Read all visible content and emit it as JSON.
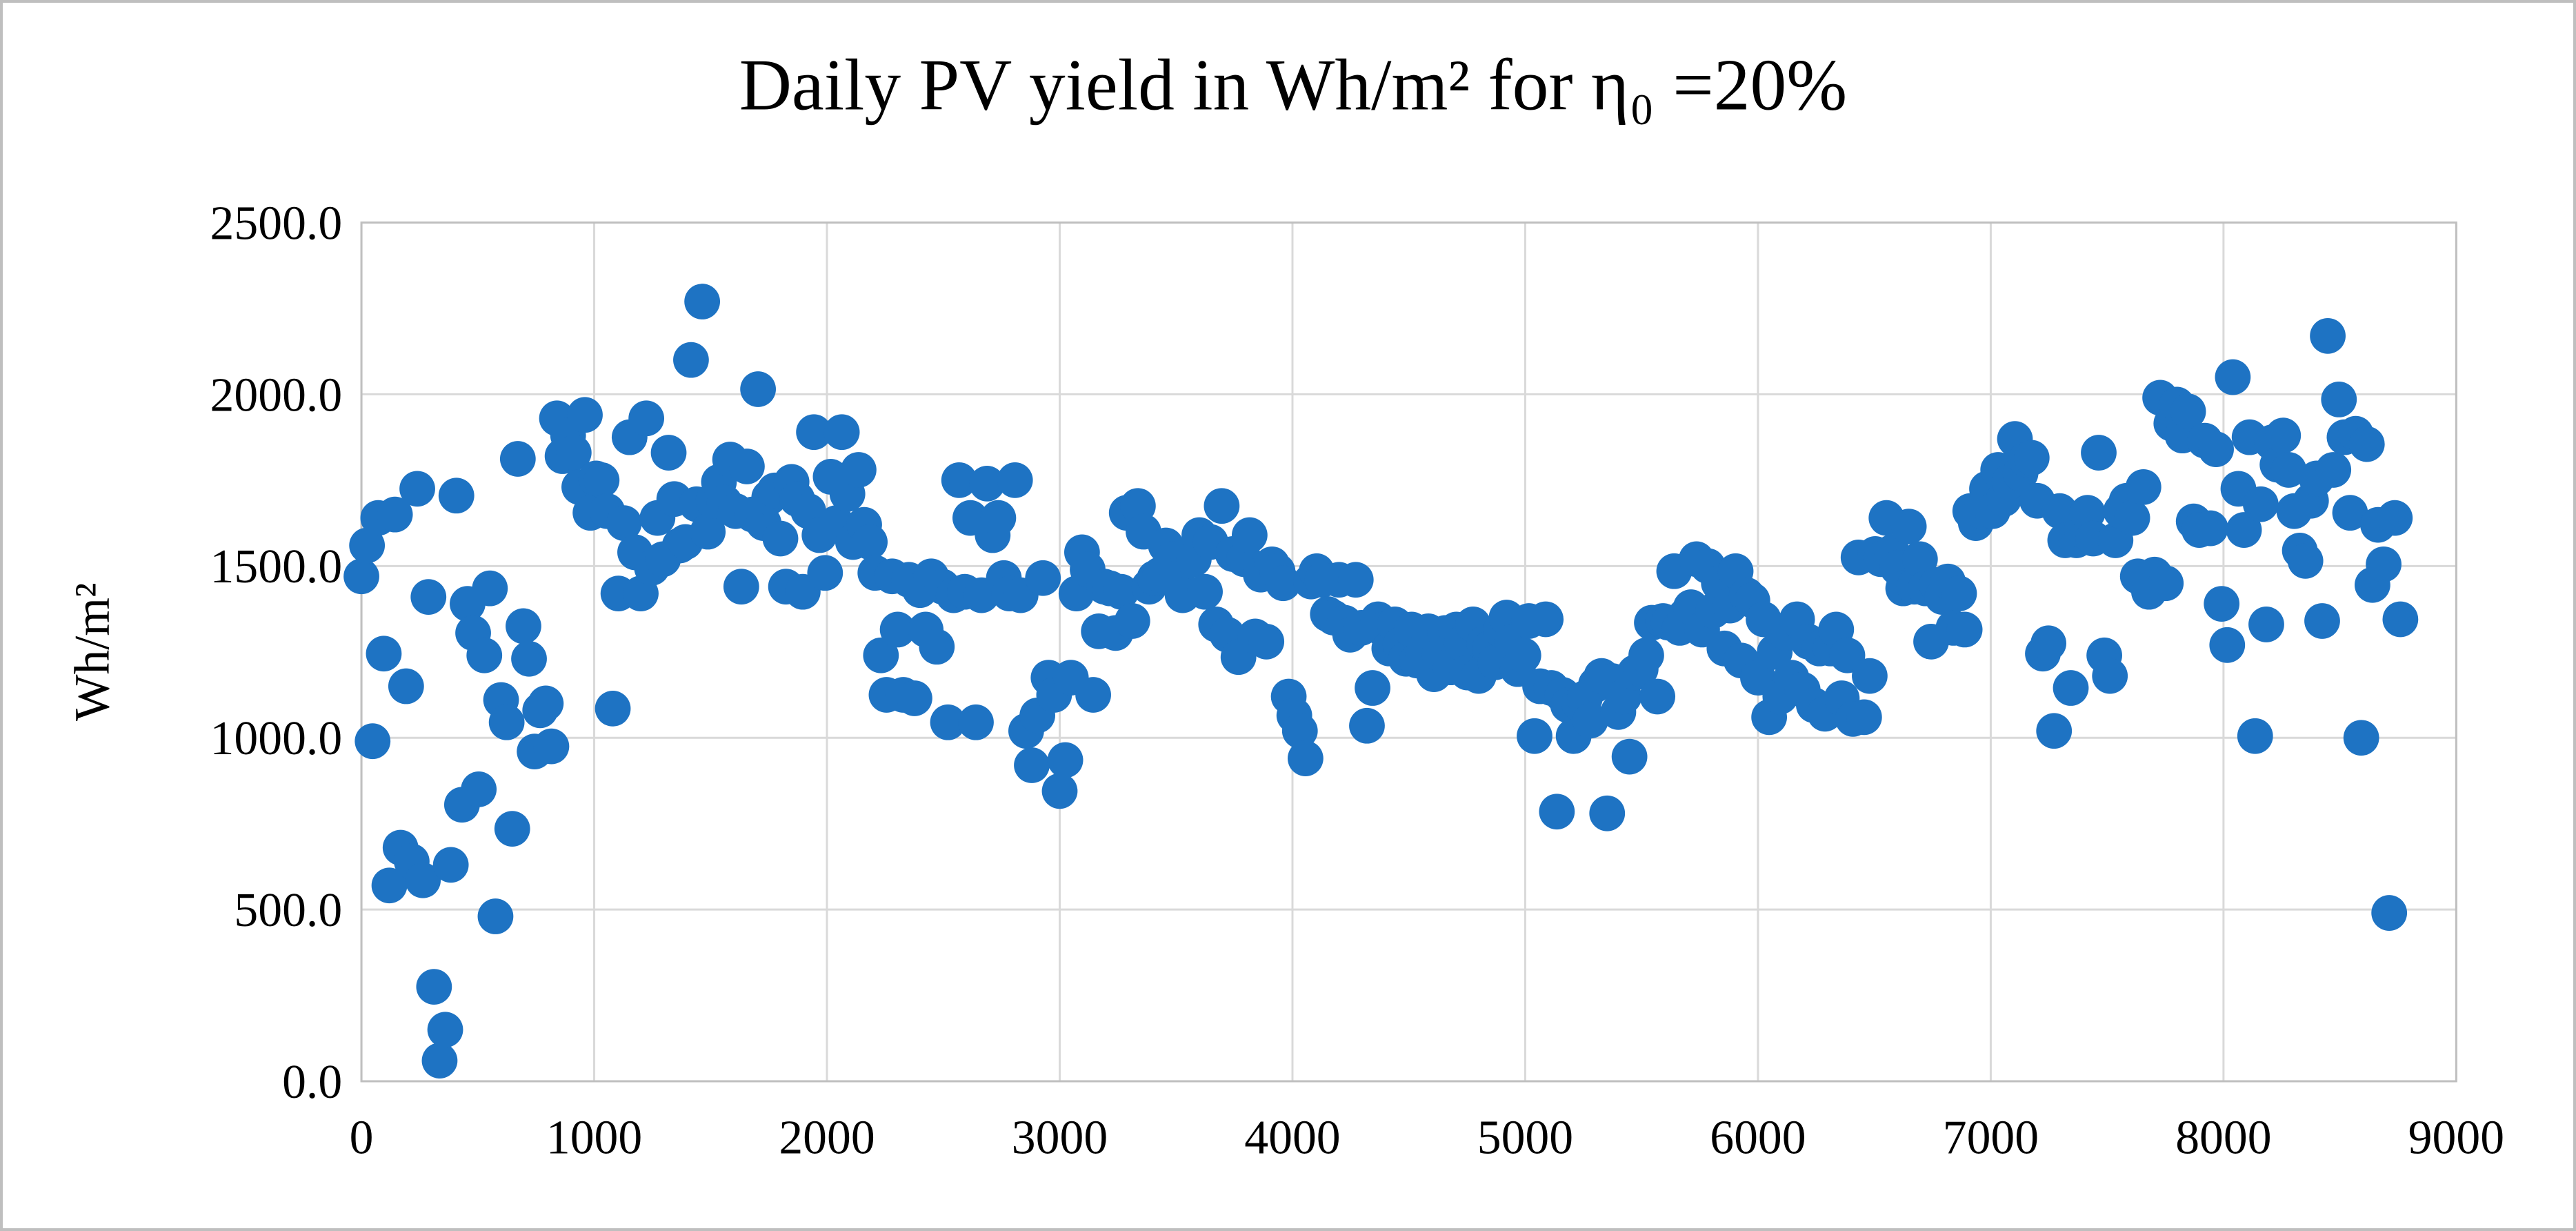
{
  "chart_data": {
    "type": "scatter",
    "title": "Daily PV yield in Wh/m² for η₀ =20%",
    "ylabel": "Wh/m²",
    "xlabel": "",
    "xlim": [
      0,
      9000
    ],
    "ylim": [
      0,
      2500
    ],
    "x_ticks": [
      "0",
      "1000",
      "2000",
      "3000",
      "4000",
      "5000",
      "6000",
      "7000",
      "8000",
      "9000"
    ],
    "y_ticks": [
      "0.0",
      "500.0",
      "1000.0",
      "1500.0",
      "2000.0",
      "2500.0"
    ],
    "grid": true,
    "legend_position": "none",
    "marker_color": "#1E73C3",
    "marker_radius": 26,
    "grid_color": "#D9D9D9",
    "plot_border_color": "#BFBFBF",
    "points": [
      [
        0,
        1470
      ],
      [
        24,
        1560
      ],
      [
        48,
        990
      ],
      [
        72,
        1640
      ],
      [
        96,
        1245
      ],
      [
        120,
        570
      ],
      [
        144,
        1650
      ],
      [
        168,
        680
      ],
      [
        192,
        1150
      ],
      [
        216,
        640
      ],
      [
        240,
        1725
      ],
      [
        264,
        585
      ],
      [
        288,
        1410
      ],
      [
        312,
        275
      ],
      [
        336,
        60
      ],
      [
        360,
        150
      ],
      [
        384,
        630
      ],
      [
        408,
        1705
      ],
      [
        432,
        805
      ],
      [
        456,
        1390
      ],
      [
        480,
        1305
      ],
      [
        504,
        850
      ],
      [
        528,
        1240
      ],
      [
        552,
        1435
      ],
      [
        576,
        480
      ],
      [
        600,
        1110
      ],
      [
        624,
        1045
      ],
      [
        648,
        735
      ],
      [
        672,
        1812
      ],
      [
        696,
        1325
      ],
      [
        720,
        1230
      ],
      [
        744,
        960
      ],
      [
        768,
        1080
      ],
      [
        792,
        1100
      ],
      [
        816,
        975
      ],
      [
        840,
        1930
      ],
      [
        864,
        1820
      ],
      [
        888,
        1880
      ],
      [
        912,
        1830
      ],
      [
        936,
        1730
      ],
      [
        960,
        1940
      ],
      [
        984,
        1655
      ],
      [
        1008,
        1755
      ],
      [
        1032,
        1750
      ],
      [
        1056,
        1660
      ],
      [
        1080,
        1085
      ],
      [
        1104,
        1420
      ],
      [
        1128,
        1625
      ],
      [
        1152,
        1875
      ],
      [
        1176,
        1540
      ],
      [
        1200,
        1420
      ],
      [
        1224,
        1930
      ],
      [
        1248,
        1495
      ],
      [
        1272,
        1640
      ],
      [
        1296,
        1520
      ],
      [
        1320,
        1830
      ],
      [
        1344,
        1695
      ],
      [
        1368,
        1560
      ],
      [
        1392,
        1570
      ],
      [
        1416,
        2100
      ],
      [
        1440,
        1680
      ],
      [
        1464,
        2270
      ],
      [
        1488,
        1600
      ],
      [
        1512,
        1690
      ],
      [
        1536,
        1745
      ],
      [
        1560,
        1685
      ],
      [
        1584,
        1810
      ],
      [
        1608,
        1660
      ],
      [
        1632,
        1440
      ],
      [
        1656,
        1790
      ],
      [
        1680,
        1650
      ],
      [
        1704,
        2015
      ],
      [
        1728,
        1625
      ],
      [
        1752,
        1700
      ],
      [
        1776,
        1720
      ],
      [
        1800,
        1580
      ],
      [
        1824,
        1440
      ],
      [
        1848,
        1745
      ],
      [
        1872,
        1695
      ],
      [
        1896,
        1425
      ],
      [
        1920,
        1660
      ],
      [
        1944,
        1890
      ],
      [
        1968,
        1590
      ],
      [
        1992,
        1480
      ],
      [
        2016,
        1760
      ],
      [
        2040,
        1625
      ],
      [
        2064,
        1890
      ],
      [
        2088,
        1710
      ],
      [
        2112,
        1570
      ],
      [
        2136,
        1780
      ],
      [
        2160,
        1620
      ],
      [
        2184,
        1570
      ],
      [
        2208,
        1480
      ],
      [
        2232,
        1240
      ],
      [
        2256,
        1125
      ],
      [
        2280,
        1470
      ],
      [
        2304,
        1315
      ],
      [
        2328,
        1125
      ],
      [
        2352,
        1460
      ],
      [
        2376,
        1115
      ],
      [
        2400,
        1430
      ],
      [
        2424,
        1315
      ],
      [
        2448,
        1470
      ],
      [
        2472,
        1265
      ],
      [
        2496,
        1440
      ],
      [
        2520,
        1045
      ],
      [
        2544,
        1415
      ],
      [
        2568,
        1750
      ],
      [
        2592,
        1425
      ],
      [
        2616,
        1640
      ],
      [
        2640,
        1045
      ],
      [
        2664,
        1415
      ],
      [
        2688,
        1740
      ],
      [
        2712,
        1590
      ],
      [
        2736,
        1640
      ],
      [
        2760,
        1465
      ],
      [
        2784,
        1420
      ],
      [
        2808,
        1750
      ],
      [
        2832,
        1415
      ],
      [
        2856,
        1020
      ],
      [
        2880,
        920
      ],
      [
        2904,
        1065
      ],
      [
        2928,
        1465
      ],
      [
        2952,
        1175
      ],
      [
        2976,
        1125
      ],
      [
        3000,
        845
      ],
      [
        3024,
        935
      ],
      [
        3048,
        1175
      ],
      [
        3072,
        1420
      ],
      [
        3096,
        1540
      ],
      [
        3120,
        1490
      ],
      [
        3144,
        1125
      ],
      [
        3168,
        1310
      ],
      [
        3192,
        1440
      ],
      [
        3216,
        1435
      ],
      [
        3240,
        1305
      ],
      [
        3264,
        1425
      ],
      [
        3288,
        1655
      ],
      [
        3312,
        1340
      ],
      [
        3336,
        1675
      ],
      [
        3360,
        1600
      ],
      [
        3384,
        1440
      ],
      [
        3408,
        1465
      ],
      [
        3432,
        1475
      ],
      [
        3456,
        1560
      ],
      [
        3480,
        1520
      ],
      [
        3504,
        1465
      ],
      [
        3528,
        1415
      ],
      [
        3552,
        1530
      ],
      [
        3576,
        1520
      ],
      [
        3600,
        1590
      ],
      [
        3624,
        1425
      ],
      [
        3648,
        1570
      ],
      [
        3672,
        1330
      ],
      [
        3696,
        1675
      ],
      [
        3720,
        1300
      ],
      [
        3744,
        1535
      ],
      [
        3768,
        1235
      ],
      [
        3792,
        1520
      ],
      [
        3816,
        1590
      ],
      [
        3840,
        1295
      ],
      [
        3864,
        1475
      ],
      [
        3888,
        1280
      ],
      [
        3912,
        1505
      ],
      [
        3936,
        1485
      ],
      [
        3960,
        1450
      ],
      [
        3984,
        1120
      ],
      [
        4008,
        1065
      ],
      [
        4032,
        1020
      ],
      [
        4056,
        940
      ],
      [
        4080,
        1455
      ],
      [
        4104,
        1485
      ],
      [
        4128,
        1460
      ],
      [
        4152,
        1360
      ],
      [
        4176,
        1350
      ],
      [
        4200,
        1460
      ],
      [
        4224,
        1335
      ],
      [
        4248,
        1300
      ],
      [
        4272,
        1460
      ],
      [
        4296,
        1320
      ],
      [
        4320,
        1035
      ],
      [
        4344,
        1145
      ],
      [
        4368,
        1345
      ],
      [
        4392,
        1315
      ],
      [
        4416,
        1260
      ],
      [
        4440,
        1330
      ],
      [
        4464,
        1270
      ],
      [
        4488,
        1230
      ],
      [
        4512,
        1315
      ],
      [
        4536,
        1225
      ],
      [
        4560,
        1245
      ],
      [
        4584,
        1310
      ],
      [
        4608,
        1185
      ],
      [
        4632,
        1245
      ],
      [
        4656,
        1305
      ],
      [
        4680,
        1205
      ],
      [
        4704,
        1315
      ],
      [
        4728,
        1275
      ],
      [
        4752,
        1190
      ],
      [
        4776,
        1330
      ],
      [
        4800,
        1180
      ],
      [
        4824,
        1275
      ],
      [
        4848,
        1260
      ],
      [
        4872,
        1220
      ],
      [
        4896,
        1315
      ],
      [
        4920,
        1350
      ],
      [
        4944,
        1280
      ],
      [
        4968,
        1200
      ],
      [
        4992,
        1240
      ],
      [
        5016,
        1340
      ],
      [
        5040,
        1005
      ],
      [
        5064,
        1150
      ],
      [
        5088,
        1345
      ],
      [
        5112,
        1145
      ],
      [
        5136,
        785
      ],
      [
        5160,
        1125
      ],
      [
        5184,
        1095
      ],
      [
        5208,
        1005
      ],
      [
        5232,
        1100
      ],
      [
        5256,
        1115
      ],
      [
        5280,
        1050
      ],
      [
        5304,
        1155
      ],
      [
        5328,
        1180
      ],
      [
        5352,
        780
      ],
      [
        5376,
        1165
      ],
      [
        5400,
        1075
      ],
      [
        5424,
        1120
      ],
      [
        5448,
        945
      ],
      [
        5472,
        1190
      ],
      [
        5496,
        1200
      ],
      [
        5520,
        1240
      ],
      [
        5544,
        1335
      ],
      [
        5568,
        1120
      ],
      [
        5592,
        1340
      ],
      [
        5616,
        1335
      ],
      [
        5640,
        1485
      ],
      [
        5664,
        1320
      ],
      [
        5688,
        1355
      ],
      [
        5712,
        1380
      ],
      [
        5736,
        1520
      ],
      [
        5760,
        1315
      ],
      [
        5784,
        1500
      ],
      [
        5808,
        1370
      ],
      [
        5832,
        1450
      ],
      [
        5856,
        1260
      ],
      [
        5880,
        1385
      ],
      [
        5904,
        1485
      ],
      [
        5928,
        1225
      ],
      [
        5952,
        1415
      ],
      [
        5976,
        1400
      ],
      [
        6000,
        1175
      ],
      [
        6024,
        1345
      ],
      [
        6048,
        1060
      ],
      [
        6072,
        1250
      ],
      [
        6096,
        1120
      ],
      [
        6120,
        1305
      ],
      [
        6144,
        1175
      ],
      [
        6168,
        1345
      ],
      [
        6192,
        1140
      ],
      [
        6216,
        1280
      ],
      [
        6240,
        1095
      ],
      [
        6264,
        1260
      ],
      [
        6288,
        1070
      ],
      [
        6312,
        1260
      ],
      [
        6336,
        1315
      ],
      [
        6360,
        1115
      ],
      [
        6384,
        1240
      ],
      [
        6408,
        1055
      ],
      [
        6432,
        1525
      ],
      [
        6456,
        1060
      ],
      [
        6480,
        1180
      ],
      [
        6504,
        1535
      ],
      [
        6528,
        1520
      ],
      [
        6552,
        1640
      ],
      [
        6576,
        1540
      ],
      [
        6600,
        1495
      ],
      [
        6624,
        1435
      ],
      [
        6648,
        1615
      ],
      [
        6672,
        1440
      ],
      [
        6696,
        1520
      ],
      [
        6720,
        1435
      ],
      [
        6744,
        1280
      ],
      [
        6768,
        1445
      ],
      [
        6792,
        1410
      ],
      [
        6816,
        1455
      ],
      [
        6840,
        1320
      ],
      [
        6864,
        1420
      ],
      [
        6888,
        1315
      ],
      [
        6912,
        1660
      ],
      [
        6936,
        1625
      ],
      [
        6960,
        1660
      ],
      [
        6984,
        1725
      ],
      [
        7008,
        1660
      ],
      [
        7032,
        1780
      ],
      [
        7056,
        1695
      ],
      [
        7080,
        1745
      ],
      [
        7104,
        1870
      ],
      [
        7128,
        1770
      ],
      [
        7152,
        1810
      ],
      [
        7176,
        1815
      ],
      [
        7200,
        1690
      ],
      [
        7224,
        1245
      ],
      [
        7248,
        1275
      ],
      [
        7272,
        1020
      ],
      [
        7296,
        1660
      ],
      [
        7320,
        1575
      ],
      [
        7344,
        1145
      ],
      [
        7368,
        1575
      ],
      [
        7392,
        1605
      ],
      [
        7416,
        1655
      ],
      [
        7440,
        1580
      ],
      [
        7464,
        1830
      ],
      [
        7488,
        1240
      ],
      [
        7512,
        1180
      ],
      [
        7536,
        1575
      ],
      [
        7560,
        1660
      ],
      [
        7584,
        1690
      ],
      [
        7608,
        1640
      ],
      [
        7632,
        1470
      ],
      [
        7656,
        1730
      ],
      [
        7680,
        1425
      ],
      [
        7704,
        1475
      ],
      [
        7728,
        1990
      ],
      [
        7752,
        1450
      ],
      [
        7776,
        1915
      ],
      [
        7800,
        1970
      ],
      [
        7824,
        1880
      ],
      [
        7848,
        1950
      ],
      [
        7872,
        1630
      ],
      [
        7896,
        1605
      ],
      [
        7920,
        1865
      ],
      [
        7944,
        1610
      ],
      [
        7968,
        1840
      ],
      [
        7992,
        1390
      ],
      [
        8016,
        1270
      ],
      [
        8040,
        2050
      ],
      [
        8064,
        1725
      ],
      [
        8088,
        1605
      ],
      [
        8112,
        1875
      ],
      [
        8136,
        1005
      ],
      [
        8160,
        1680
      ],
      [
        8184,
        1330
      ],
      [
        8208,
        1860
      ],
      [
        8232,
        1795
      ],
      [
        8256,
        1880
      ],
      [
        8280,
        1780
      ],
      [
        8304,
        1660
      ],
      [
        8328,
        1545
      ],
      [
        8352,
        1515
      ],
      [
        8376,
        1690
      ],
      [
        8400,
        1755
      ],
      [
        8424,
        1340
      ],
      [
        8448,
        2170
      ],
      [
        8472,
        1780
      ],
      [
        8496,
        1985
      ],
      [
        8520,
        1875
      ],
      [
        8544,
        1655
      ],
      [
        8568,
        1885
      ],
      [
        8592,
        1000
      ],
      [
        8616,
        1855
      ],
      [
        8640,
        1445
      ],
      [
        8664,
        1620
      ],
      [
        8688,
        1505
      ],
      [
        8712,
        490
      ],
      [
        8736,
        1640
      ],
      [
        8760,
        1345
      ]
    ]
  }
}
